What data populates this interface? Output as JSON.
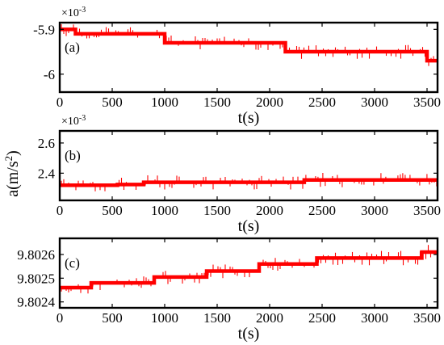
{
  "chart_data": [
    {
      "type": "line",
      "panel_label": "(a)",
      "xlabel": "t(s)",
      "xlim": [
        0,
        3600
      ],
      "ylim": [
        -0.00604,
        -0.005885
      ],
      "xticks": [
        0,
        500,
        1000,
        1500,
        2000,
        2500,
        3000,
        3500
      ],
      "xtick_labels": [
        "0",
        "500",
        "1000",
        "1500",
        "2000",
        "2500",
        "3000",
        "3500"
      ],
      "yticks": [
        -0.0059,
        -0.006
      ],
      "ytick_labels": [
        "-5.9",
        "-6"
      ],
      "exponent": "×10",
      "exponent_power": "-3",
      "series": [
        {
          "color": "#ff0000",
          "x": [
            0,
            150,
            150,
            1000,
            1000,
            2150,
            2150,
            3500,
            3500,
            3600
          ],
          "y": [
            -0.0059,
            -0.0059,
            -0.00591,
            -0.00591,
            -0.00593,
            -0.00593,
            -0.00595,
            -0.00595,
            -0.00597,
            -0.00597
          ]
        }
      ]
    },
    {
      "type": "line",
      "panel_label": "(b)",
      "xlabel": "t(s)",
      "xlim": [
        0,
        3600
      ],
      "ylim": [
        0.00222,
        0.00268
      ],
      "xticks": [
        0,
        500,
        1000,
        1500,
        2000,
        2500,
        3000,
        3500
      ],
      "xtick_labels": [
        "0",
        "500",
        "1000",
        "1500",
        "2000",
        "2500",
        "3000",
        "3500"
      ],
      "yticks": [
        0.0024,
        0.0026
      ],
      "ytick_labels": [
        "2.4",
        "2.6"
      ],
      "exponent": "×10",
      "exponent_power": "-3",
      "series": [
        {
          "color": "#ff0000",
          "x": [
            0,
            550,
            550,
            800,
            800,
            2330,
            2330,
            3600
          ],
          "y": [
            0.00232,
            0.00232,
            0.002325,
            0.002325,
            0.00234,
            0.00234,
            0.002355,
            0.002355
          ]
        }
      ]
    },
    {
      "type": "line",
      "panel_label": "(c)",
      "xlabel": "t(s)",
      "xlim": [
        0,
        3600
      ],
      "ylim": [
        9.802375,
        9.802668
      ],
      "xticks": [
        0,
        500,
        1000,
        1500,
        2000,
        2500,
        3000,
        3500
      ],
      "xtick_labels": [
        "0",
        "500",
        "1000",
        "1500",
        "2000",
        "2500",
        "3000",
        "3500"
      ],
      "yticks": [
        9.8024,
        9.8025,
        9.8026
      ],
      "ytick_labels": [
        "9.8024",
        "9.8025",
        "9.8026"
      ],
      "series": [
        {
          "color": "#ff0000",
          "x": [
            0,
            300,
            300,
            900,
            900,
            1400,
            1400,
            1900,
            1900,
            2450,
            2450,
            3450,
            3450,
            3600
          ],
          "y": [
            9.80246,
            9.80246,
            9.80248,
            9.80248,
            9.802505,
            9.802505,
            9.80253,
            9.80253,
            9.80256,
            9.80256,
            9.802585,
            9.802585,
            9.80261,
            9.80261
          ]
        }
      ]
    }
  ],
  "shared_ylabel": {
    "prefix": "a(m/s",
    "superscript": "2",
    "suffix": ")"
  }
}
